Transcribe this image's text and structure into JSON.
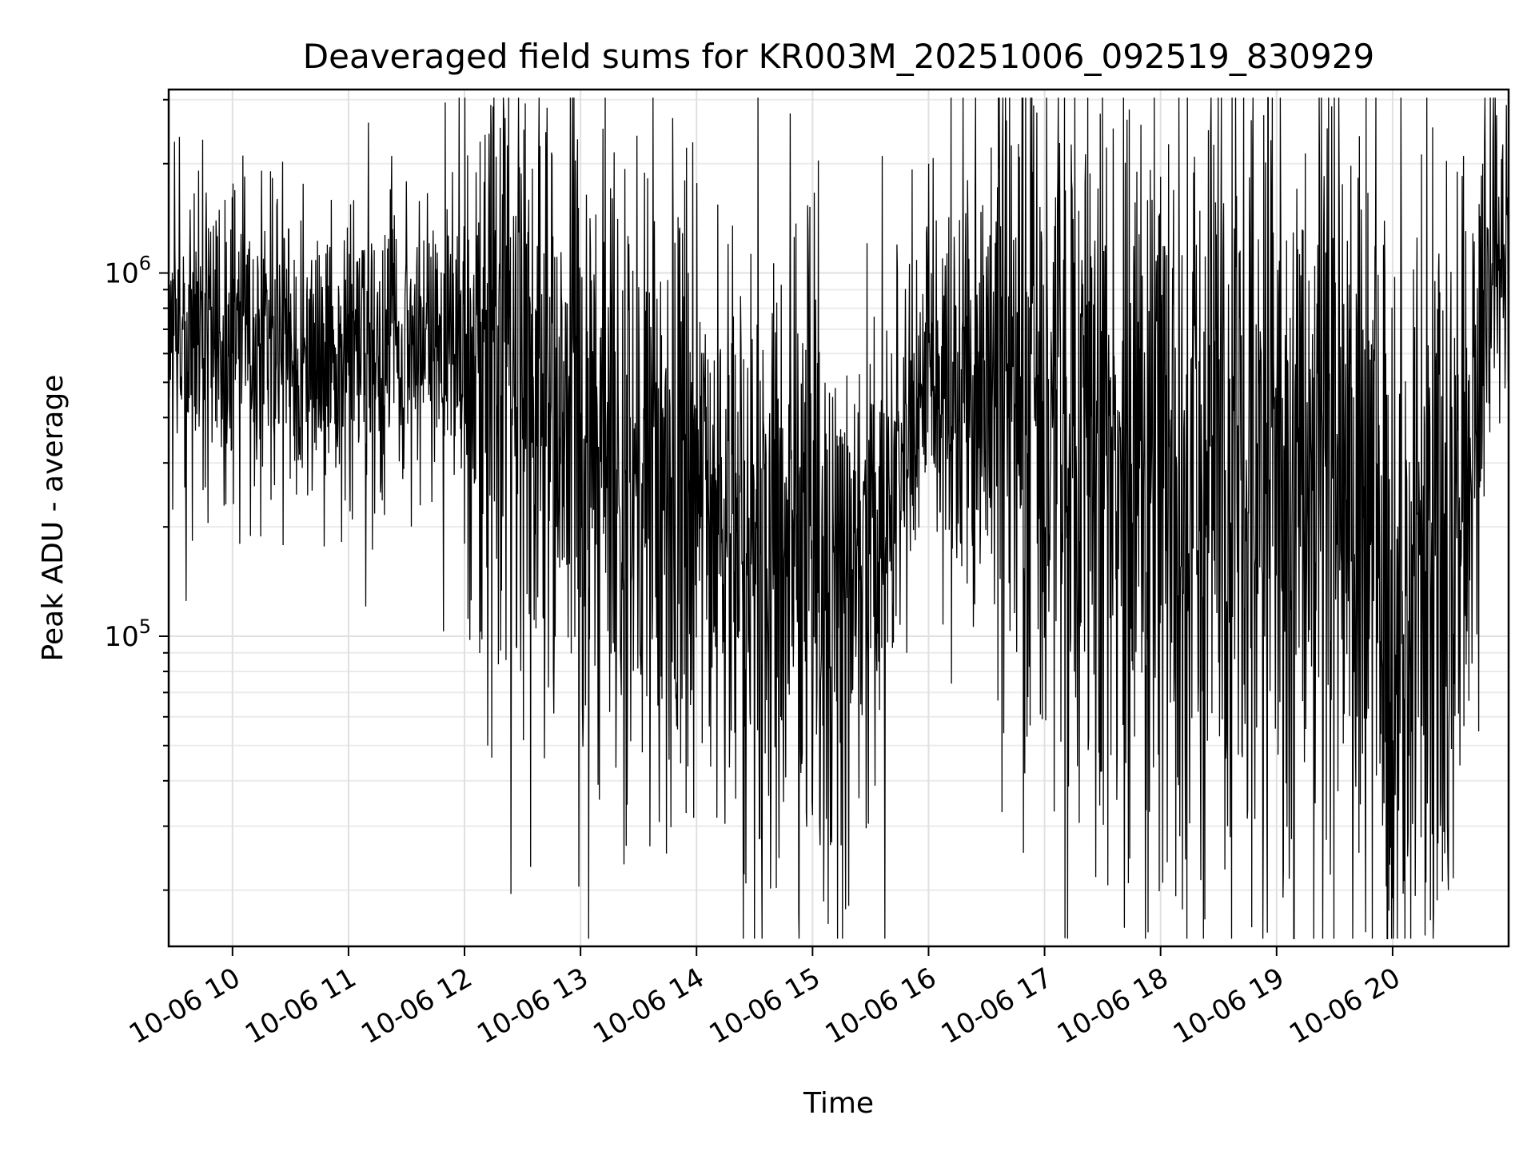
{
  "chart_data": {
    "type": "line",
    "title": "Deaveraged field sums for KR003M_20251006_092519_830929",
    "xlabel": "Time",
    "ylabel": "Peak ADU - average",
    "y_scale": "log",
    "ylim": [
      14000,
      3200000
    ],
    "xlim_hours": [
      9.45,
      21.0
    ],
    "x_ticks": [
      {
        "hour": 10,
        "label": "10-06 10"
      },
      {
        "hour": 11,
        "label": "10-06 11"
      },
      {
        "hour": 12,
        "label": "10-06 12"
      },
      {
        "hour": 13,
        "label": "10-06 13"
      },
      {
        "hour": 14,
        "label": "10-06 14"
      },
      {
        "hour": 15,
        "label": "10-06 15"
      },
      {
        "hour": 16,
        "label": "10-06 16"
      },
      {
        "hour": 17,
        "label": "10-06 17"
      },
      {
        "hour": 18,
        "label": "10-06 18"
      },
      {
        "hour": 19,
        "label": "10-06 19"
      },
      {
        "hour": 20,
        "label": "10-06 20"
      }
    ],
    "y_ticks": [
      {
        "value": 100000,
        "base": "10",
        "exp": "5"
      },
      {
        "value": 1000000,
        "base": "10",
        "exp": "6"
      }
    ],
    "grid": true,
    "series": [
      {
        "name": "field sums",
        "color": "#000000",
        "sample_count": 3000,
        "envelope_hours": [
          9.45,
          9.6,
          10.0,
          10.5,
          11.0,
          11.5,
          11.9,
          12.2,
          12.5,
          12.8,
          13.0,
          13.2,
          13.6,
          13.9,
          14.1,
          14.4,
          14.8,
          15.1,
          15.5,
          15.7,
          15.9,
          16.2,
          16.5,
          16.8,
          17.1,
          17.5,
          18.0,
          18.5,
          18.9,
          19.3,
          19.7,
          20.0,
          20.3,
          20.6,
          20.8,
          21.0
        ],
        "envelope_median": [
          650000,
          700000,
          650000,
          600000,
          580000,
          620000,
          660000,
          500000,
          380000,
          420000,
          430000,
          320000,
          260000,
          300000,
          220000,
          170000,
          190000,
          130000,
          150000,
          230000,
          400000,
          520000,
          560000,
          480000,
          330000,
          300000,
          300000,
          290000,
          260000,
          240000,
          200000,
          130000,
          150000,
          220000,
          700000,
          1100000
        ],
        "envelope_spread_decades": [
          0.2,
          0.22,
          0.22,
          0.22,
          0.22,
          0.22,
          0.25,
          0.48,
          0.55,
          0.48,
          0.5,
          0.55,
          0.55,
          0.5,
          0.32,
          0.42,
          0.48,
          0.55,
          0.35,
          0.25,
          0.25,
          0.35,
          0.42,
          0.5,
          0.55,
          0.55,
          0.55,
          0.55,
          0.55,
          0.55,
          0.6,
          0.65,
          0.6,
          0.55,
          0.35,
          0.3
        ],
        "notable_peaks": [
          {
            "hour": 9.5,
            "value": 2300000
          },
          {
            "hour": 11.37,
            "value": 2100000
          },
          {
            "hour": 13.9,
            "value": 1800000
          },
          {
            "hour": 15.6,
            "value": 2100000
          },
          {
            "hour": 16.0,
            "value": 2000000
          },
          {
            "hour": 16.9,
            "value": 1900000
          },
          {
            "hour": 20.6,
            "value": 1850000
          },
          {
            "hour": 20.98,
            "value": 2900000
          }
        ],
        "notable_troughs": [
          {
            "hour": 9.6,
            "value": 125000
          },
          {
            "hour": 12.2,
            "value": 50000
          },
          {
            "hour": 13.15,
            "value": 39000
          },
          {
            "hour": 14.75,
            "value": 35000
          },
          {
            "hour": 15.1,
            "value": 38000
          },
          {
            "hour": 18.6,
            "value": 28000
          },
          {
            "hour": 20.0,
            "value": 19000
          },
          {
            "hour": 20.28,
            "value": 15000
          },
          {
            "hour": 20.48,
            "value": 20000
          }
        ]
      }
    ]
  }
}
